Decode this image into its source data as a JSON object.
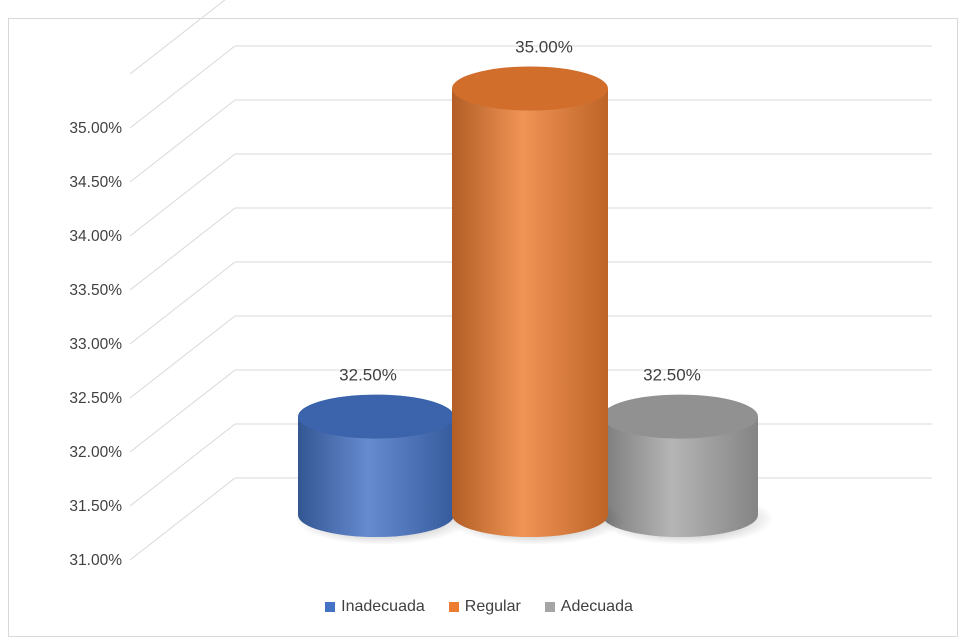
{
  "chart_data": {
    "type": "bar",
    "style": "3d-cylinder",
    "categories": [
      "Inadecuada",
      "Regular",
      "Adecuada"
    ],
    "values": [
      32.5,
      35.0,
      32.5
    ],
    "data_labels": [
      "32.50%",
      "35.00%",
      "32.50%"
    ],
    "colors": [
      "#4472C4",
      "#ED7D31",
      "#A5A5A5"
    ],
    "title": "",
    "xlabel": "",
    "ylabel": "",
    "ylim": [
      31.0,
      35.5
    ],
    "yticks": [
      "31.00%",
      "31.50%",
      "32.00%",
      "32.50%",
      "33.00%",
      "33.50%",
      "34.00%",
      "34.50%",
      "35.00%"
    ],
    "grid": true,
    "legend_position": "bottom",
    "legend": [
      "Inadecuada",
      "Regular",
      "Adecuada"
    ]
  }
}
